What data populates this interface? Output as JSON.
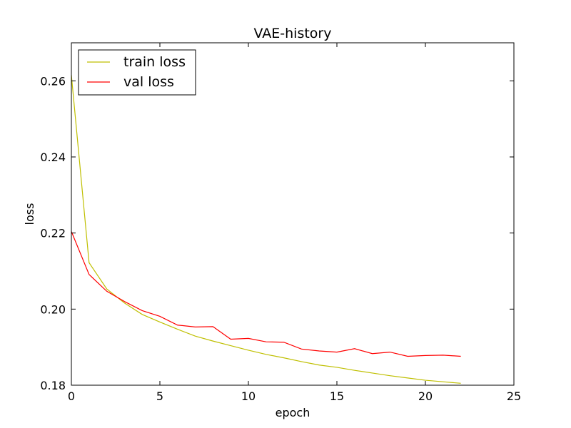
{
  "chart_data": {
    "type": "line",
    "title": "VAE-history",
    "xlabel": "epoch",
    "ylabel": "loss",
    "xlim": [
      0,
      25
    ],
    "ylim": [
      0.18,
      0.27
    ],
    "xticks": [
      0,
      5,
      10,
      15,
      20,
      25
    ],
    "yticks": [
      0.18,
      0.2,
      0.22,
      0.24,
      0.26
    ],
    "ytick_labels": [
      "0.18",
      "0.20",
      "0.22",
      "0.24",
      "0.26"
    ],
    "grid": false,
    "legend_position": "top-left",
    "series": [
      {
        "name": "train loss",
        "color": "#bfbf00",
        "x": [
          0,
          1,
          2,
          3,
          4,
          5,
          6,
          7,
          8,
          9,
          10,
          11,
          12,
          13,
          14,
          15,
          16,
          17,
          18,
          19,
          20,
          21,
          22
        ],
        "values": [
          0.2615,
          0.2122,
          0.2053,
          0.2016,
          0.1986,
          0.1966,
          0.1947,
          0.1929,
          0.1916,
          0.1904,
          0.1892,
          0.1881,
          0.1872,
          0.1862,
          0.1853,
          0.1847,
          0.1839,
          0.1832,
          0.1825,
          0.1819,
          0.1813,
          0.1809,
          0.1805
        ]
      },
      {
        "name": "val loss",
        "color": "#ff0000",
        "x": [
          0,
          1,
          2,
          3,
          4,
          5,
          6,
          7,
          8,
          9,
          10,
          11,
          12,
          13,
          14,
          15,
          16,
          17,
          18,
          19,
          20,
          21,
          22
        ],
        "values": [
          0.2204,
          0.2091,
          0.2047,
          0.202,
          0.1996,
          0.1981,
          0.1958,
          0.1953,
          0.1954,
          0.1921,
          0.1923,
          0.1914,
          0.1913,
          0.1895,
          0.189,
          0.1887,
          0.1896,
          0.1883,
          0.1887,
          0.1876,
          0.1878,
          0.1879,
          0.1876
        ]
      }
    ]
  }
}
